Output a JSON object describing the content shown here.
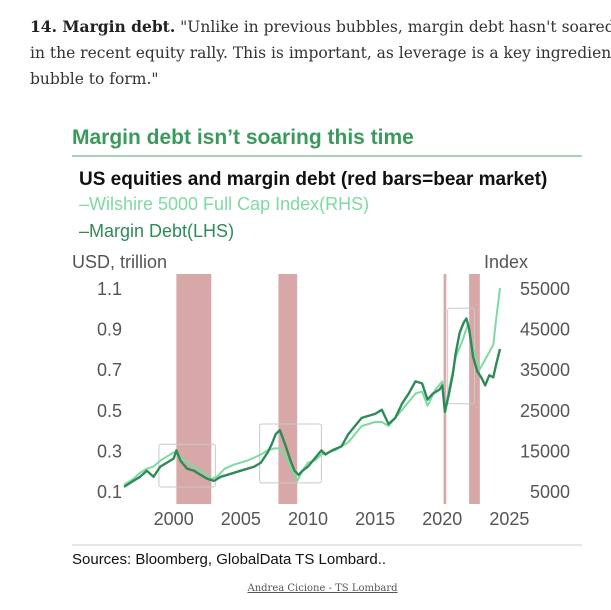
{
  "article": {
    "number_heading": "14. Margin debt.",
    "quote_line1": " \"Unlike in previous bubbles, margin debt hasn't soared to new highs",
    "quote_line2": "in the recent equity rally. This is important, as leverage is a key ingredient needed for a",
    "quote_line3": "bubble to form.\""
  },
  "caption": "Andrea Cicione - TS Lombard",
  "chart_data": {
    "type": "line",
    "headline": "Margin debt isn’t soaring this time",
    "title": "US equities and margin debt (red bars=bear market)",
    "legend": [
      {
        "label": "–Wilshire 5000 Full Cap Index(RHS)",
        "color": "#7fd9a2"
      },
      {
        "label": "–Margin Debt(LHS)",
        "color": "#2e8b57"
      }
    ],
    "left_axis": {
      "label": "USD, trillion",
      "ticks": [
        "1.1",
        "0.9",
        "0.7",
        "0.5",
        "0.3",
        "0.1"
      ],
      "range": [
        0.1,
        1.1
      ]
    },
    "right_axis": {
      "label": "Index",
      "ticks": [
        "55000",
        "45000",
        "35000",
        "25000",
        "15000",
        "5000"
      ],
      "range": [
        5000,
        55000
      ]
    },
    "x_ticks": [
      "2000",
      "2005",
      "2010",
      "2015",
      "2020",
      "2025"
    ],
    "x_range": [
      1996.3,
      2024.3
    ],
    "bear_markets": [
      [
        2000.2,
        2002.8
      ],
      [
        2007.8,
        2009.2
      ],
      [
        2020.1,
        2020.3
      ],
      [
        2022.0,
        2022.8
      ]
    ],
    "highlight_boxes": [
      [
        1998.9,
        2003.1,
        0.12,
        0.33
      ],
      [
        2006.4,
        2011.0,
        0.14,
        0.43
      ],
      [
        2020.4,
        2022.4,
        0.53,
        1.0
      ]
    ],
    "series": [
      {
        "name": "Margin Debt(LHS)",
        "axis": "left",
        "color": "#2e8b57",
        "x": [
          1996.3,
          1997.0,
          1997.5,
          1998.0,
          1998.5,
          1999.0,
          1999.5,
          2000.0,
          2000.2,
          2000.5,
          2001.0,
          2001.5,
          2002.0,
          2002.5,
          2003.0,
          2003.5,
          2004.0,
          2005.0,
          2006.0,
          2006.5,
          2007.0,
          2007.3,
          2007.6,
          2007.9,
          2008.3,
          2008.7,
          2009.0,
          2009.3,
          2009.6,
          2010.0,
          2010.5,
          2011.0,
          2011.3,
          2011.8,
          2012.5,
          2013.0,
          2013.5,
          2014.0,
          2014.5,
          2015.0,
          2015.5,
          2016.0,
          2016.5,
          2017.0,
          2017.5,
          2018.0,
          2018.5,
          2018.9,
          2019.3,
          2019.8,
          2020.0,
          2020.2,
          2020.5,
          2020.8,
          2021.0,
          2021.3,
          2021.6,
          2021.8,
          2022.0,
          2022.3,
          2022.6,
          2022.9,
          2023.2,
          2023.5,
          2023.8,
          2024.0,
          2024.3
        ],
        "y": [
          0.12,
          0.15,
          0.17,
          0.2,
          0.17,
          0.22,
          0.24,
          0.26,
          0.3,
          0.25,
          0.21,
          0.2,
          0.18,
          0.16,
          0.15,
          0.17,
          0.18,
          0.2,
          0.22,
          0.24,
          0.29,
          0.33,
          0.38,
          0.4,
          0.33,
          0.25,
          0.2,
          0.18,
          0.2,
          0.22,
          0.26,
          0.3,
          0.28,
          0.3,
          0.32,
          0.38,
          0.42,
          0.46,
          0.47,
          0.48,
          0.5,
          0.43,
          0.46,
          0.53,
          0.58,
          0.64,
          0.63,
          0.55,
          0.58,
          0.6,
          0.62,
          0.49,
          0.58,
          0.68,
          0.78,
          0.88,
          0.93,
          0.95,
          0.9,
          0.76,
          0.69,
          0.66,
          0.62,
          0.67,
          0.66,
          0.72,
          0.8
        ]
      },
      {
        "name": "Wilshire 5000 Full Cap Index(RHS)",
        "axis": "right",
        "color": "#7fd9a2",
        "x": [
          1996.3,
          1997.0,
          1997.5,
          1998.0,
          1998.5,
          1999.0,
          1999.5,
          2000.0,
          2000.3,
          2000.8,
          2001.3,
          2001.8,
          2002.3,
          2002.8,
          2003.2,
          2003.8,
          2004.5,
          2005.5,
          2006.5,
          2007.0,
          2007.5,
          2007.9,
          2008.4,
          2008.9,
          2009.2,
          2009.6,
          2010.0,
          2010.5,
          2011.0,
          2011.5,
          2012.0,
          2013.0,
          2014.0,
          2015.0,
          2015.5,
          2016.0,
          2017.0,
          2018.0,
          2018.5,
          2018.9,
          2019.5,
          2020.0,
          2020.2,
          2020.5,
          2021.0,
          2021.5,
          2021.9,
          2022.3,
          2022.8,
          2023.3,
          2023.8,
          2024.0,
          2024.3
        ],
        "y": [
          6500,
          8000,
          9500,
          10500,
          11000,
          12500,
          13500,
          14500,
          14000,
          12500,
          11500,
          10500,
          9500,
          8000,
          8500,
          10500,
          11500,
          12500,
          14000,
          15000,
          15500,
          15500,
          13000,
          9500,
          7500,
          10000,
          12000,
          12500,
          14000,
          14500,
          15000,
          17000,
          21000,
          22000,
          22000,
          21000,
          25000,
          29000,
          29500,
          26000,
          30000,
          32000,
          24000,
          30000,
          38000,
          42000,
          46000,
          40000,
          35000,
          38000,
          41000,
          47000,
          55000
        ]
      }
    ]
  }
}
